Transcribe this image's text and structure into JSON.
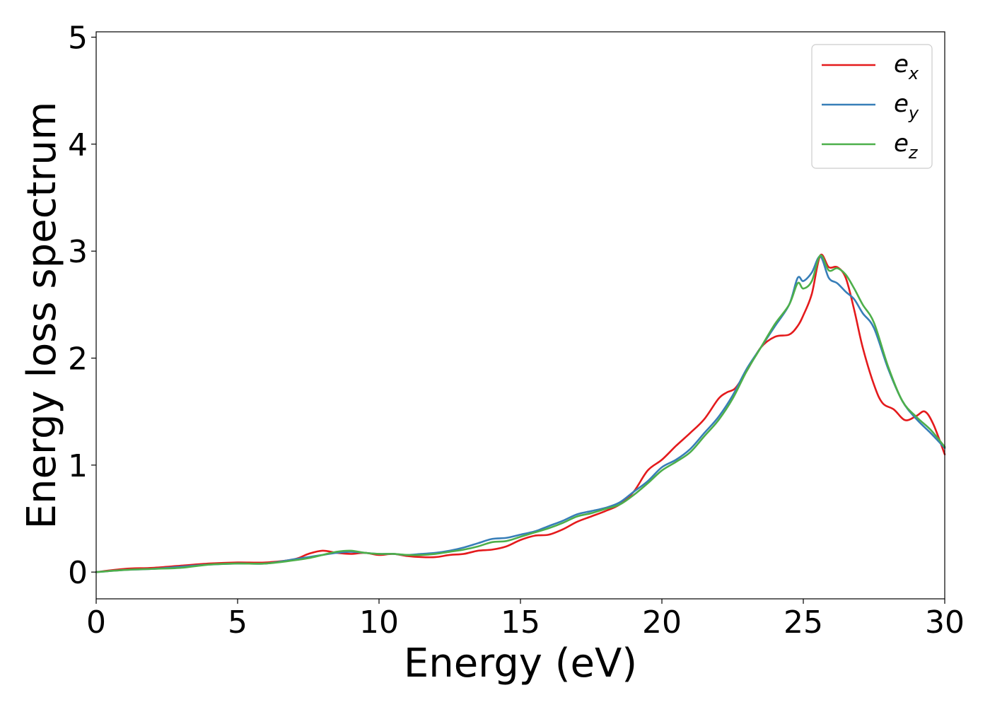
{
  "chart_data": {
    "type": "line",
    "xlabel": "Energy (eV)",
    "ylabel": "Energy loss spectrum",
    "xlim": [
      0,
      30
    ],
    "ylim": [
      -0.25,
      5.05
    ],
    "xticks": [
      "0",
      "5",
      "10",
      "15",
      "20",
      "25",
      "30"
    ],
    "yticks": [
      "0",
      "1",
      "2",
      "3",
      "4",
      "5"
    ],
    "grid": false,
    "legend_position": "top-right",
    "series": [
      {
        "name": "e",
        "subscript": "x",
        "color": "#e41a1c",
        "x": [
          0,
          1,
          2,
          3,
          4,
          5,
          6,
          7,
          7.5,
          8,
          8.5,
          9,
          9.5,
          10,
          10.5,
          11,
          11.5,
          12,
          12.5,
          13,
          13.5,
          14,
          14.5,
          15,
          15.5,
          16,
          16.5,
          17,
          17.5,
          18,
          18.5,
          19,
          19.5,
          20,
          20.5,
          21,
          21.5,
          22,
          22.3,
          22.6,
          23,
          23.5,
          24,
          24.5,
          24.8,
          25,
          25.3,
          25.6,
          25.9,
          26.2,
          26.5,
          26.8,
          27.1,
          27.5,
          27.8,
          28.2,
          28.6,
          29,
          29.3,
          29.6,
          30
        ],
        "y": [
          0.0,
          0.03,
          0.04,
          0.06,
          0.08,
          0.09,
          0.09,
          0.12,
          0.17,
          0.2,
          0.18,
          0.17,
          0.18,
          0.16,
          0.17,
          0.15,
          0.14,
          0.14,
          0.16,
          0.17,
          0.2,
          0.21,
          0.24,
          0.3,
          0.34,
          0.35,
          0.4,
          0.47,
          0.52,
          0.57,
          0.63,
          0.75,
          0.95,
          1.05,
          1.18,
          1.3,
          1.43,
          1.62,
          1.68,
          1.72,
          1.88,
          2.1,
          2.2,
          2.22,
          2.3,
          2.4,
          2.6,
          2.96,
          2.85,
          2.85,
          2.75,
          2.45,
          2.1,
          1.75,
          1.58,
          1.52,
          1.42,
          1.46,
          1.5,
          1.38,
          1.1
        ]
      },
      {
        "name": "e",
        "subscript": "y",
        "color": "#377eb8",
        "x": [
          0,
          1,
          2,
          3,
          4,
          5,
          6,
          7,
          7.5,
          8,
          8.5,
          9,
          9.5,
          10,
          10.5,
          11,
          11.5,
          12,
          12.5,
          13,
          13.5,
          14,
          14.5,
          15,
          15.5,
          16,
          16.5,
          17,
          17.5,
          18,
          18.5,
          19,
          19.5,
          20,
          20.5,
          21,
          21.5,
          22,
          22.5,
          23,
          23.5,
          24,
          24.5,
          24.8,
          25,
          25.3,
          25.6,
          25.9,
          26.2,
          26.5,
          26.8,
          27.1,
          27.5,
          28,
          28.5,
          29,
          29.5,
          30
        ],
        "y": [
          0.0,
          0.02,
          0.03,
          0.05,
          0.07,
          0.08,
          0.08,
          0.12,
          0.14,
          0.16,
          0.18,
          0.19,
          0.18,
          0.17,
          0.17,
          0.16,
          0.17,
          0.18,
          0.2,
          0.23,
          0.27,
          0.31,
          0.32,
          0.35,
          0.38,
          0.43,
          0.48,
          0.54,
          0.57,
          0.6,
          0.65,
          0.75,
          0.85,
          0.98,
          1.05,
          1.15,
          1.3,
          1.45,
          1.65,
          1.9,
          2.1,
          2.3,
          2.5,
          2.75,
          2.72,
          2.8,
          2.95,
          2.75,
          2.7,
          2.62,
          2.55,
          2.42,
          2.28,
          1.9,
          1.6,
          1.43,
          1.3,
          1.16
        ]
      },
      {
        "name": "e",
        "subscript": "z",
        "color": "#4daf4a",
        "x": [
          0,
          1,
          2,
          3,
          4,
          5,
          6,
          7,
          7.5,
          8,
          8.5,
          9,
          9.5,
          10,
          10.5,
          11,
          11.5,
          12,
          12.5,
          13,
          13.5,
          14,
          14.5,
          15,
          15.5,
          16,
          16.5,
          17,
          17.5,
          18,
          18.5,
          19,
          19.5,
          20,
          20.5,
          21,
          21.5,
          22,
          22.5,
          23,
          23.5,
          24,
          24.5,
          24.8,
          25,
          25.3,
          25.6,
          25.9,
          26.2,
          26.5,
          26.8,
          27.1,
          27.5,
          28,
          28.5,
          29,
          29.5,
          30
        ],
        "y": [
          0.0,
          0.02,
          0.03,
          0.04,
          0.07,
          0.08,
          0.08,
          0.11,
          0.13,
          0.16,
          0.19,
          0.2,
          0.18,
          0.17,
          0.17,
          0.16,
          0.16,
          0.17,
          0.19,
          0.21,
          0.24,
          0.28,
          0.29,
          0.33,
          0.37,
          0.41,
          0.46,
          0.52,
          0.55,
          0.59,
          0.63,
          0.72,
          0.83,
          0.95,
          1.03,
          1.12,
          1.27,
          1.42,
          1.62,
          1.88,
          2.1,
          2.32,
          2.5,
          2.7,
          2.65,
          2.72,
          2.96,
          2.82,
          2.84,
          2.78,
          2.65,
          2.5,
          2.33,
          1.92,
          1.6,
          1.45,
          1.33,
          1.17
        ]
      }
    ]
  }
}
